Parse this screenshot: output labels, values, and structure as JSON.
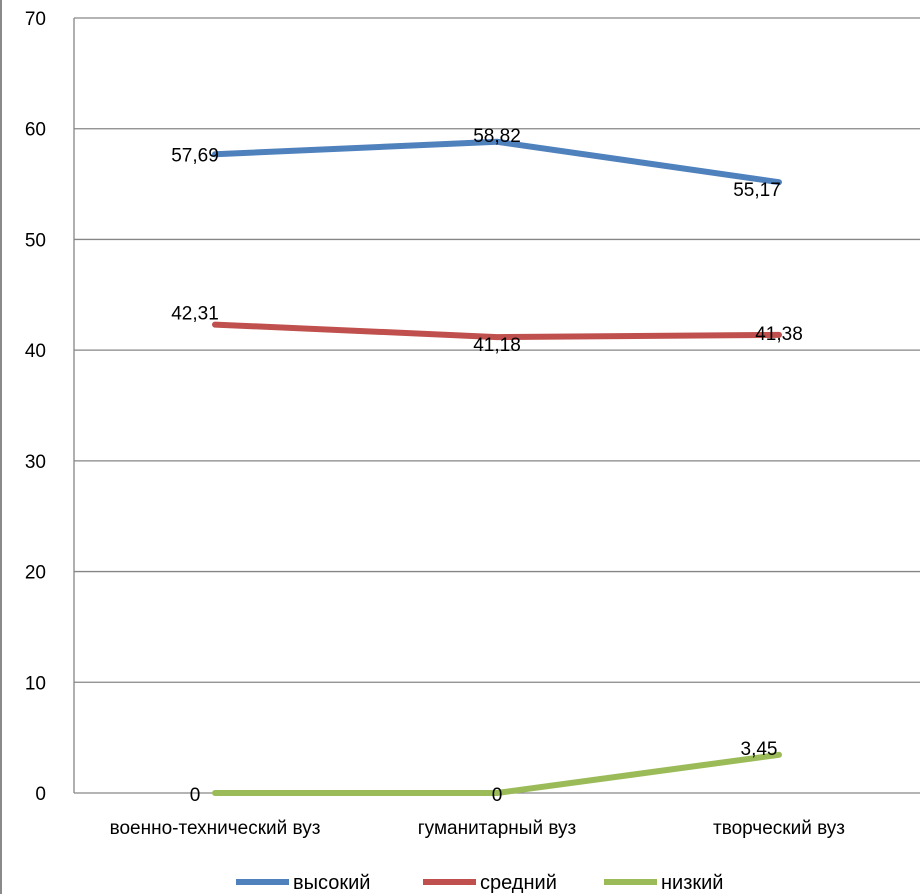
{
  "chart_data": {
    "type": "line",
    "title": "",
    "xlabel": "",
    "ylabel": "",
    "categories": [
      "военно-технический вуз",
      "гуманитарный вуз",
      "творческий вуз"
    ],
    "ylim": [
      0,
      70
    ],
    "yticks": [
      0,
      10,
      20,
      30,
      40,
      50,
      60,
      70
    ],
    "grid": true,
    "legend_position": "bottom",
    "series": [
      {
        "name": "высокий",
        "color": "#4F81BD",
        "values": [
          57.69,
          58.82,
          55.17
        ],
        "labels": [
          "57,69",
          "58,82",
          "55,17"
        ]
      },
      {
        "name": "средний",
        "color": "#C0504D",
        "values": [
          42.31,
          41.18,
          41.38
        ],
        "labels": [
          "42,31",
          "41,18",
          "41,38"
        ]
      },
      {
        "name": "низкий",
        "color": "#9BBB59",
        "values": [
          0,
          0,
          3.45
        ],
        "labels": [
          "0",
          "0",
          "3,45"
        ]
      }
    ]
  }
}
